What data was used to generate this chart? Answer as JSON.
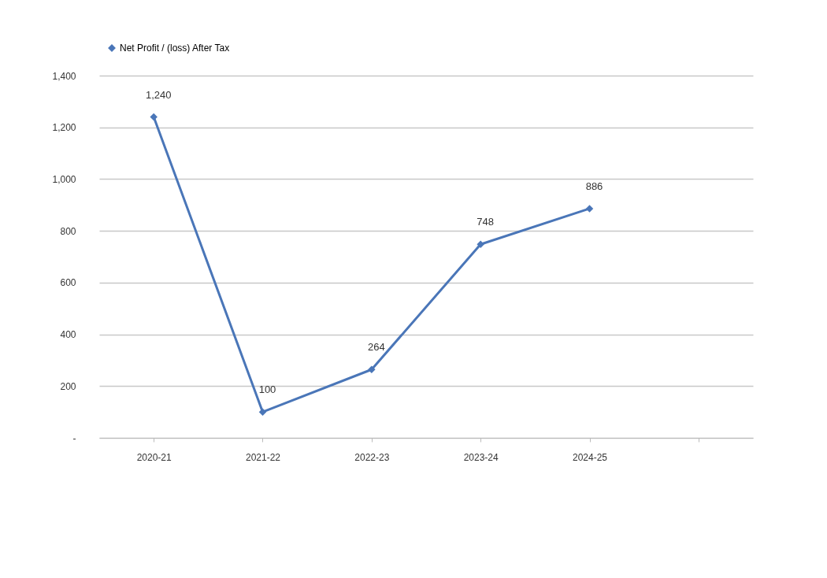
{
  "chart_data": {
    "type": "line",
    "categories": [
      "2020-21",
      "2021-22",
      "2022-23",
      "2023-24",
      "2024-25",
      null
    ],
    "series": [
      {
        "name": "Net Profit / (loss)  After Tax",
        "color": "#4a76b8",
        "values": [
          1240,
          100,
          264,
          748,
          886,
          null
        ],
        "value_labels": [
          "1,240",
          "100",
          "264",
          "748",
          "886",
          null
        ]
      }
    ],
    "ylim": [
      0,
      1400
    ],
    "yticks": [
      {
        "value": 0,
        "label": "-"
      },
      200,
      400,
      600,
      800,
      {
        "value": 1000,
        "label": "1,000"
      },
      {
        "value": 1200,
        "label": "1,200"
      },
      {
        "value": 1400,
        "label": "1,400"
      }
    ],
    "grid": "y",
    "legend": "top",
    "marker": "diamond",
    "line_style": "solid"
  }
}
